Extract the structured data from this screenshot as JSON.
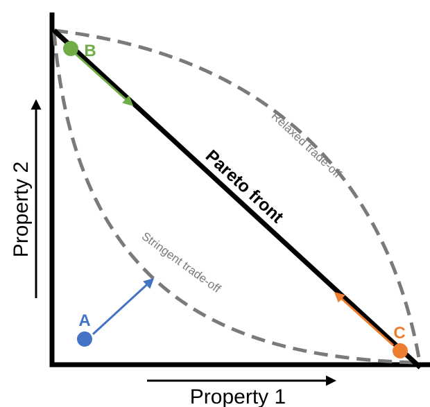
{
  "axes": {
    "x_label": "Property 1",
    "y_label": "Property 2"
  },
  "curves": {
    "pareto_front": "Pareto front",
    "relaxed": "Relaxed trade-off",
    "stringent": "Stringent trade-off"
  },
  "points": {
    "a": {
      "label": "A",
      "color": "#4472c4"
    },
    "b": {
      "label": "B",
      "color": "#70ad47"
    },
    "c": {
      "label": "C",
      "color": "#ed7d31"
    }
  },
  "colors": {
    "axis": "#000000",
    "dashed_curve": "#7a7a7a",
    "curve_label": "#7a7a7a"
  }
}
